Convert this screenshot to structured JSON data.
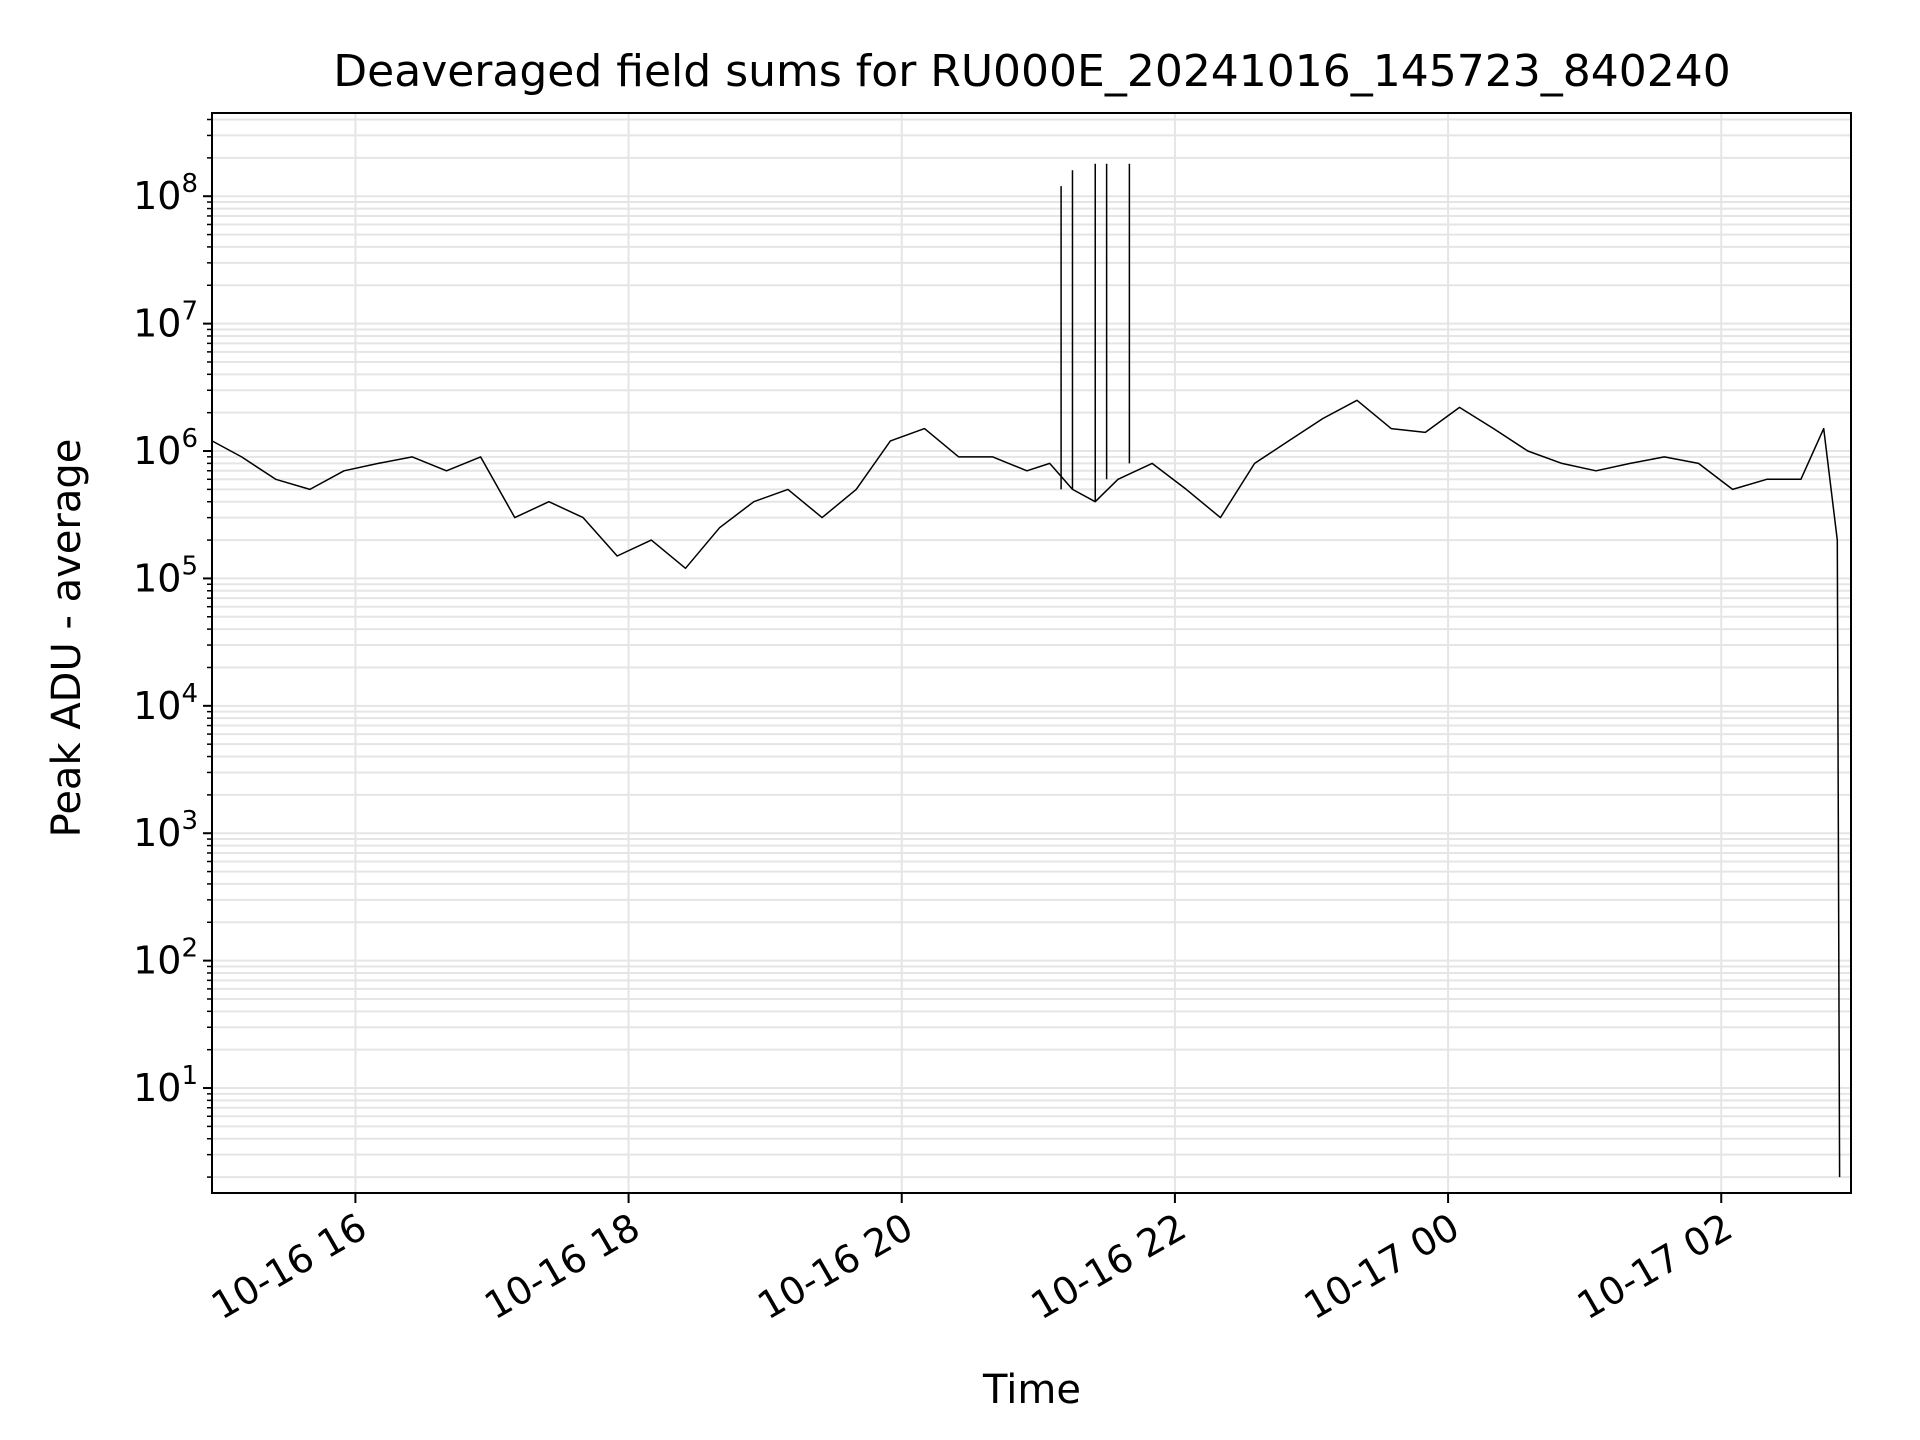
{
  "chart_data": {
    "type": "line",
    "title": "Deaveraged field sums for RU000E_20241016_145723_840240",
    "xlabel": "Time",
    "ylabel": "Peak ADU - average",
    "yscale": "log",
    "xlim": [
      "2024-10-16 14:57",
      "2024-10-17 02:57"
    ],
    "ylim": [
      1.5,
      450000000
    ],
    "grid": true,
    "x_ticks": [
      {
        "t": "2024-10-16 16:00",
        "label": "10-16 16"
      },
      {
        "t": "2024-10-16 18:00",
        "label": "10-16 18"
      },
      {
        "t": "2024-10-16 20:00",
        "label": "10-16 20"
      },
      {
        "t": "2024-10-16 22:00",
        "label": "10-16 22"
      },
      {
        "t": "2024-10-17 00:00",
        "label": "10-17 00"
      },
      {
        "t": "2024-10-17 02:00",
        "label": "10-17 02"
      }
    ],
    "y_ticks": [
      {
        "value": 10,
        "base": "10",
        "exp": "1"
      },
      {
        "value": 100,
        "base": "10",
        "exp": "2"
      },
      {
        "value": 1000,
        "base": "10",
        "exp": "3"
      },
      {
        "value": 10000,
        "base": "10",
        "exp": "4"
      },
      {
        "value": 100000,
        "base": "10",
        "exp": "5"
      },
      {
        "value": 1000000,
        "base": "10",
        "exp": "6"
      },
      {
        "value": 10000000,
        "base": "10",
        "exp": "7"
      },
      {
        "value": 100000000,
        "base": "10",
        "exp": "8"
      }
    ],
    "line_color": "#000000",
    "grid_color": "#e5e5e5",
    "series": [
      {
        "x": [
          "2024-10-16 14:57",
          "2024-10-16 15:10",
          "2024-10-16 15:25",
          "2024-10-16 15:40",
          "2024-10-16 15:55",
          "2024-10-16 16:10",
          "2024-10-16 16:25",
          "2024-10-16 16:40",
          "2024-10-16 16:55",
          "2024-10-16 17:10",
          "2024-10-16 17:25",
          "2024-10-16 17:40",
          "2024-10-16 17:55",
          "2024-10-16 18:10",
          "2024-10-16 18:25",
          "2024-10-16 18:40",
          "2024-10-16 18:55",
          "2024-10-16 19:10",
          "2024-10-16 19:25",
          "2024-10-16 19:40",
          "2024-10-16 19:55",
          "2024-10-16 20:10",
          "2024-10-16 20:25",
          "2024-10-16 20:40",
          "2024-10-16 20:55",
          "2024-10-16 21:05",
          "2024-10-16 21:15",
          "2024-10-16 21:25",
          "2024-10-16 21:35",
          "2024-10-16 21:50",
          "2024-10-16 22:05",
          "2024-10-16 22:20",
          "2024-10-16 22:35",
          "2024-10-16 22:50",
          "2024-10-16 23:05",
          "2024-10-16 23:20",
          "2024-10-16 23:35",
          "2024-10-16 23:50",
          "2024-10-17 00:05",
          "2024-10-17 00:20",
          "2024-10-17 00:35",
          "2024-10-17 00:50",
          "2024-10-17 01:05",
          "2024-10-17 01:20",
          "2024-10-17 01:35",
          "2024-10-17 01:50",
          "2024-10-17 02:05",
          "2024-10-17 02:20",
          "2024-10-17 02:35",
          "2024-10-17 02:45",
          "2024-10-17 02:51",
          "2024-10-17 02:52"
        ],
        "y": [
          1200000,
          900000,
          600000,
          500000,
          700000,
          800000,
          900000,
          700000,
          900000,
          300000,
          400000,
          300000,
          150000,
          200000,
          120000,
          250000,
          400000,
          500000,
          300000,
          500000,
          1200000,
          1500000,
          900000,
          900000,
          700000,
          800000,
          500000,
          400000,
          600000,
          800000,
          500000,
          300000,
          800000,
          1200000,
          1800000,
          2500000,
          1500000,
          1400000,
          2200000,
          1500000,
          1000000,
          800000,
          700000,
          800000,
          900000,
          800000,
          500000,
          600000,
          600000,
          1500000,
          200000,
          2
        ]
      }
    ],
    "spikes": [
      {
        "x": "2024-10-16 21:10",
        "y": 120000000
      },
      {
        "x": "2024-10-16 21:15",
        "y": 160000000
      },
      {
        "x": "2024-10-16 21:25",
        "y": 180000000
      },
      {
        "x": "2024-10-16 21:30",
        "y": 180000000
      },
      {
        "x": "2024-10-16 21:40",
        "y": 180000000
      }
    ]
  }
}
